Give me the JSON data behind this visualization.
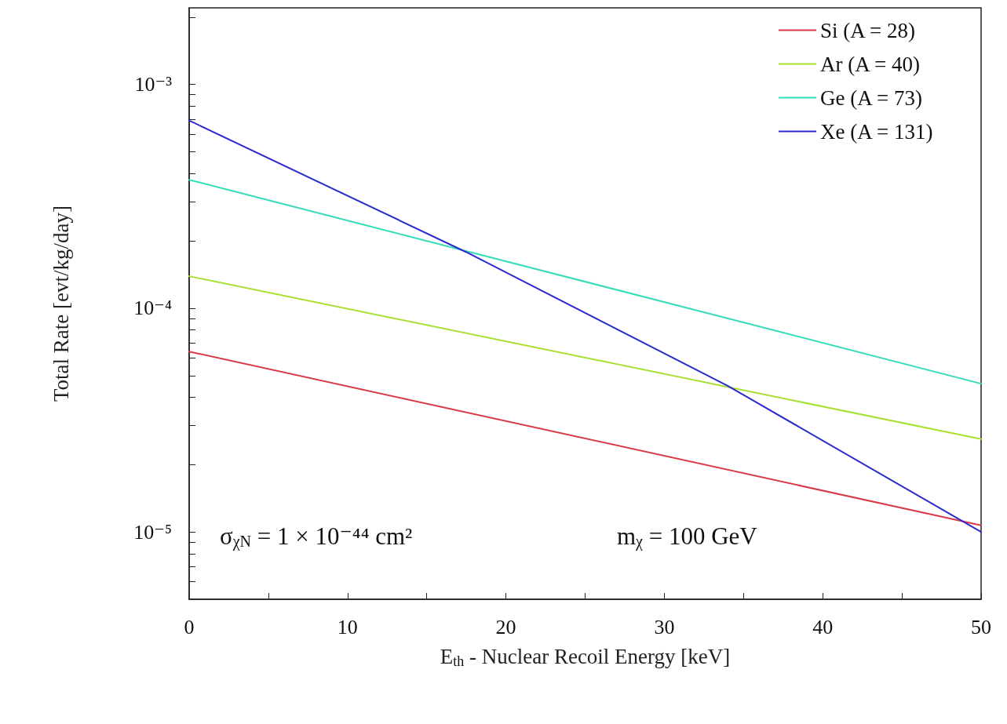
{
  "chart_data": {
    "type": "line",
    "xlabel": "E$_{th}$ - Nuclear Recoil Energy [keV]",
    "ylabel": "Total Rate [evt/kg/day]",
    "log": "y",
    "grid": false,
    "legend": "top right",
    "line_style": "solid",
    "marker": "none",
    "xlim": [
      0,
      50
    ],
    "ylim": [
      5e-06,
      0.0022
    ],
    "xticks": [
      0,
      {
        "value": 5,
        "label": null
      },
      10,
      {
        "value": 15,
        "label": null
      },
      20,
      {
        "value": 25,
        "label": null
      },
      30,
      {
        "value": 35,
        "label": null
      },
      40,
      {
        "value": 45,
        "label": null
      },
      50
    ],
    "yticks": [
      {
        "value": 6e-06,
        "label": null
      },
      {
        "value": 7e-06,
        "label": null
      },
      {
        "value": 8e-06,
        "label": null
      },
      {
        "value": 9e-06,
        "label": null
      },
      {
        "value": 1e-05,
        "label": "10⁻⁵"
      },
      {
        "value": 2e-05,
        "label": null
      },
      {
        "value": 3e-05,
        "label": null
      },
      {
        "value": 4e-05,
        "label": null
      },
      {
        "value": 5e-05,
        "label": null
      },
      {
        "value": 6e-05,
        "label": null
      },
      {
        "value": 7e-05,
        "label": null
      },
      {
        "value": 8e-05,
        "label": null
      },
      {
        "value": 9e-05,
        "label": null
      },
      {
        "value": 0.0001,
        "label": "10⁻⁴"
      },
      {
        "value": 0.0002,
        "label": null
      },
      {
        "value": 0.0003,
        "label": null
      },
      {
        "value": 0.0004,
        "label": null
      },
      {
        "value": 0.0005,
        "label": null
      },
      {
        "value": 0.0006,
        "label": null
      },
      {
        "value": 0.0007,
        "label": null
      },
      {
        "value": 0.0008,
        "label": null
      },
      {
        "value": 0.0009,
        "label": null
      },
      {
        "value": 0.001,
        "label": "10⁻³"
      },
      {
        "value": 0.002,
        "label": null
      }
    ],
    "series": [
      {
        "name": "Si (A = 28)",
        "color": "#d83a48",
        "x": [
          0,
          50
        ],
        "values": [
          6.4e-05,
          1.07e-05
        ]
      },
      {
        "name": "Ar (A = 40)",
        "color": "#a8e032",
        "x": [
          0,
          50
        ],
        "values": [
          0.000139,
          2.6e-05
        ]
      },
      {
        "name": "Ge (A = 73)",
        "color": "#33dcb8",
        "x": [
          0,
          50
        ],
        "values": [
          0.000375,
          4.6e-05
        ]
      },
      {
        "name": "Xe (A = 131)",
        "color": "#2a2ad0",
        "x": [
          0,
          17.5,
          34,
          50
        ],
        "values": [
          0.00069,
          0.000178,
          4.5e-05,
          1e-05
        ]
      }
    ],
    "annotations": [
      "σ$_{χN}$ = 1 × 10⁻⁴⁴ cm²",
      "m$_{χ}$ = 100 GeV"
    ]
  }
}
